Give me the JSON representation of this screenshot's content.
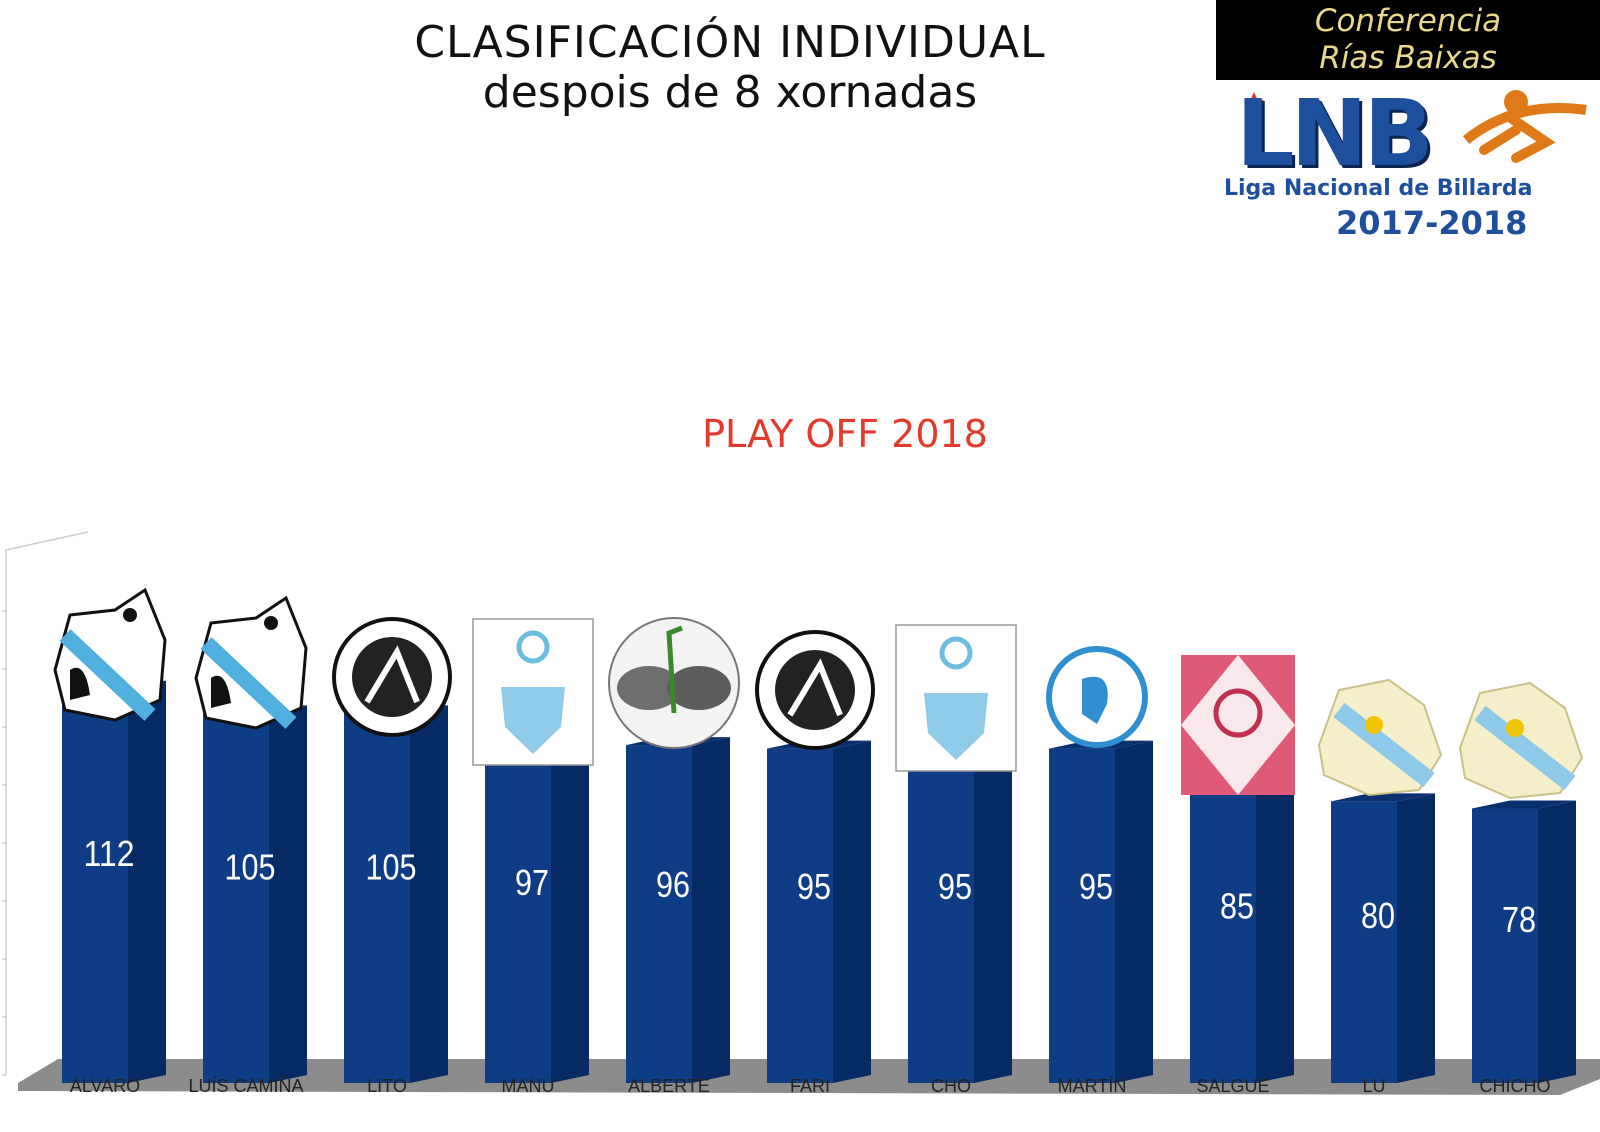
{
  "header": {
    "title_line1": "CLASIFICACIÓN  INDIVIDUAL",
    "title_line2": "despois de 8 xornadas"
  },
  "logo": {
    "conference_line1": "Conferencia",
    "conference_line2": "Rías Baixas",
    "brand": "LNB",
    "league_name": "Liga Nacional de Billarda",
    "season": "2017-2018"
  },
  "subtitle": "PLAY OFF 2018",
  "colors": {
    "bar": "#0e3d86",
    "bar_side": "#062a63",
    "bar_top": "#082f6e",
    "floor": "#8c8c8c",
    "playoff": "#e23b2e"
  },
  "chart_data": {
    "type": "bar",
    "categories": [
      "ÁLVARO",
      "LUÍS CAMIÑA",
      "LITO",
      "MANU",
      "ALBERTE",
      "FARI",
      "CHO",
      "MARTÍN",
      "SALGUE",
      "LU",
      "CHICHO"
    ],
    "values": [
      112,
      105,
      105,
      97,
      96,
      95,
      95,
      95,
      85,
      80,
      78
    ],
    "data_labels": [
      "112",
      "105",
      "105",
      "97",
      "96",
      "95",
      "95",
      "95",
      "85",
      "80",
      "78"
    ],
    "team_logos": [
      "club-logo-marin",
      "club-logo-marin",
      "club-logo-corredoiras",
      "club-logo-armadina",
      "club-logo-ncb-pontevedra",
      "club-logo-corredoiras",
      "club-logo-armadina",
      "club-logo-laxe-de-rons",
      "club-logo-valpacos",
      "club-logo-lua-e-forza",
      "club-logo-lua-e-forza"
    ],
    "ylim": [
      0,
      130
    ],
    "grid": false,
    "bar_style": "3d"
  }
}
